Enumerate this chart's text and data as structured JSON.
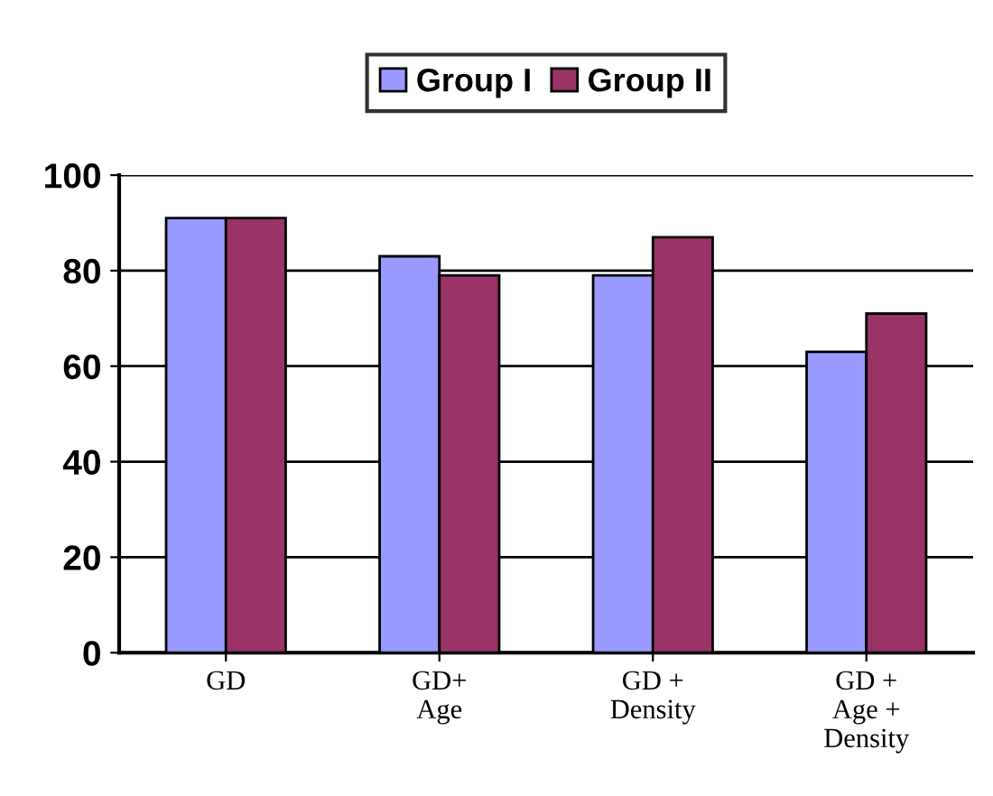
{
  "chart_data": {
    "type": "bar",
    "categories": [
      "GD",
      "GD+\nAge",
      "GD +\nDensity",
      "GD +\nAge +\nDensity"
    ],
    "series": [
      {
        "name": "Group I",
        "color": "#9999ff",
        "values": [
          91,
          83,
          79,
          63
        ]
      },
      {
        "name": "Group II",
        "color": "#993366",
        "values": [
          91,
          79,
          87,
          71
        ]
      }
    ],
    "ylim": [
      0,
      100
    ],
    "yticks": [
      0,
      20,
      40,
      60,
      80,
      100
    ],
    "grid": "y",
    "legend": "top"
  }
}
